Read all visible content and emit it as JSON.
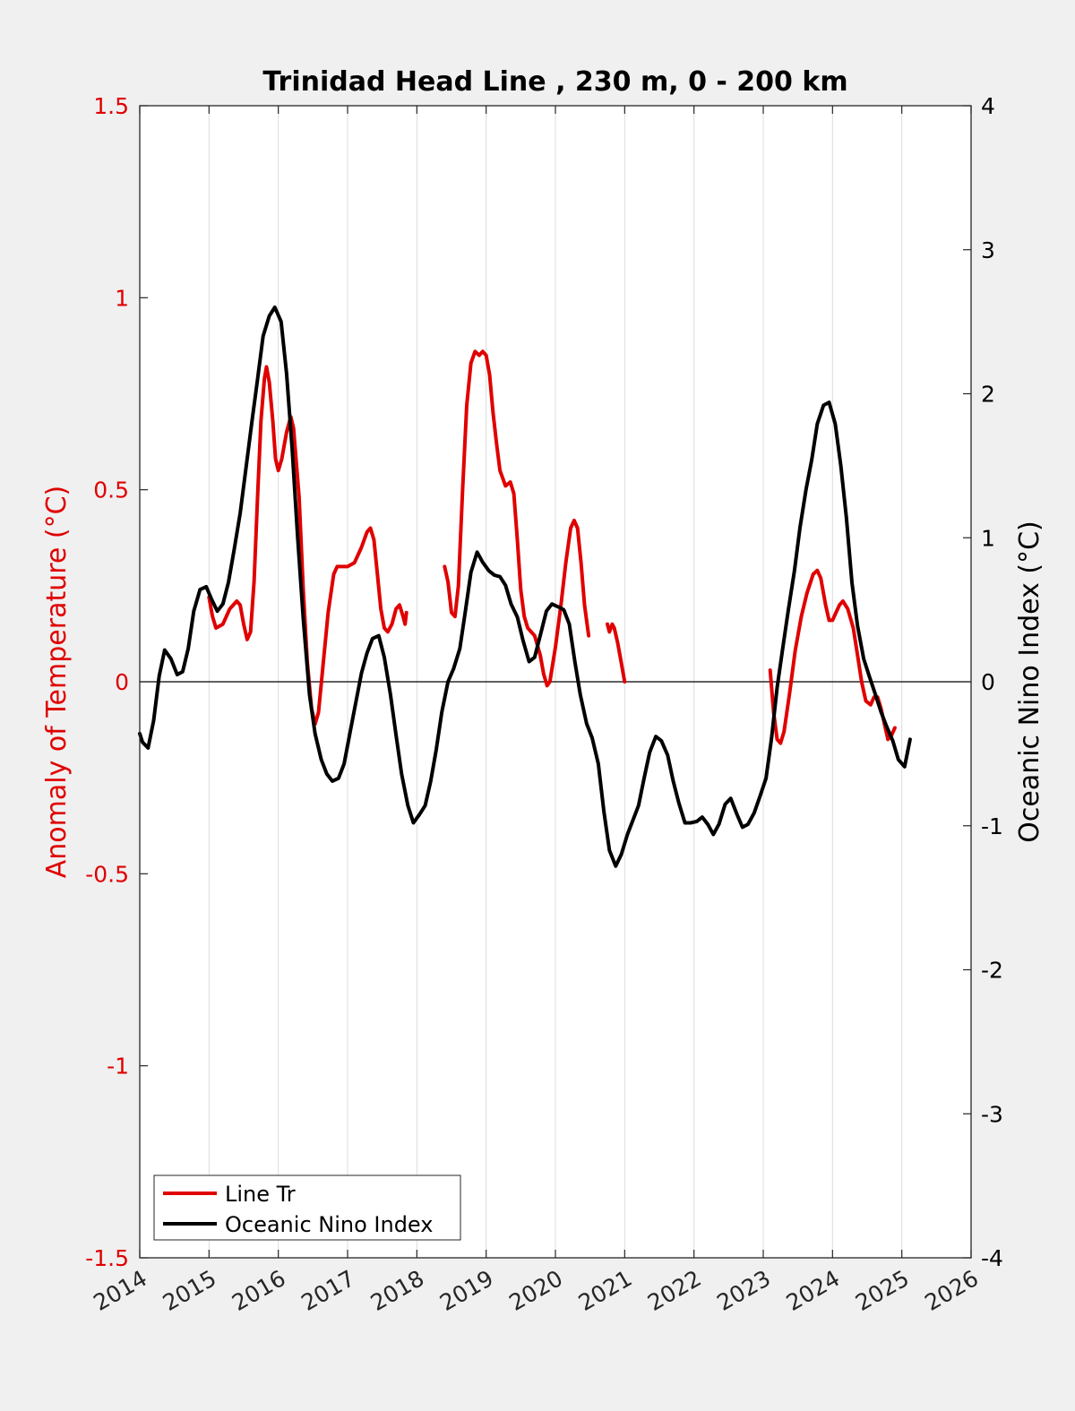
{
  "chart_data": {
    "type": "line",
    "title": "Trinidad Head Line , 230 m, 0 - 200 km",
    "xlim": [
      2014,
      2026
    ],
    "x_ticks": [
      "2014",
      "2015",
      "2016",
      "2017",
      "2018",
      "2019",
      "2020",
      "2021",
      "2022",
      "2023",
      "2024",
      "2025",
      "2026"
    ],
    "grid": "vertical",
    "left_axis": {
      "label": "Anomaly of Temperature (°C)",
      "ylim": [
        -1.5,
        1.5
      ],
      "ticks": [
        "-1.5",
        "-1",
        "-0.5",
        "0",
        "0.5",
        "1",
        "1.5"
      ],
      "color": "#e00000"
    },
    "right_axis": {
      "label": "Oceanic Nino Index (°C)",
      "ylim": [
        -4,
        4
      ],
      "ticks": [
        "-4",
        "-3",
        "-2",
        "-1",
        "0",
        "1",
        "2",
        "3",
        "4"
      ],
      "color": "#000000"
    },
    "legend": {
      "placement": "bottom-left"
    },
    "series": [
      {
        "name": "Line Tr",
        "axis": "left",
        "color": "#e00000",
        "segments": [
          [
            [
              2015.0,
              0.22
            ],
            [
              2015.05,
              0.17
            ],
            [
              2015.1,
              0.14
            ],
            [
              2015.2,
              0.15
            ],
            [
              2015.3,
              0.19
            ],
            [
              2015.4,
              0.21
            ],
            [
              2015.45,
              0.2
            ],
            [
              2015.5,
              0.15
            ],
            [
              2015.55,
              0.11
            ],
            [
              2015.6,
              0.13
            ],
            [
              2015.65,
              0.26
            ],
            [
              2015.7,
              0.48
            ],
            [
              2015.75,
              0.68
            ],
            [
              2015.8,
              0.79
            ],
            [
              2015.83,
              0.82
            ],
            [
              2015.87,
              0.78
            ],
            [
              2015.92,
              0.68
            ],
            [
              2015.96,
              0.58
            ],
            [
              2016.0,
              0.55
            ],
            [
              2016.05,
              0.58
            ],
            [
              2016.12,
              0.65
            ],
            [
              2016.18,
              0.69
            ],
            [
              2016.22,
              0.66
            ],
            [
              2016.3,
              0.48
            ],
            [
              2016.36,
              0.24
            ],
            [
              2016.42,
              0.05
            ],
            [
              2016.48,
              -0.07
            ],
            [
              2016.53,
              -0.11
            ],
            [
              2016.58,
              -0.08
            ],
            [
              2016.65,
              0.05
            ],
            [
              2016.72,
              0.18
            ],
            [
              2016.8,
              0.28
            ],
            [
              2016.85,
              0.3
            ],
            [
              2017.0,
              0.3
            ],
            [
              2017.1,
              0.31
            ],
            [
              2017.2,
              0.35
            ],
            [
              2017.28,
              0.39
            ],
            [
              2017.33,
              0.4
            ],
            [
              2017.38,
              0.37
            ],
            [
              2017.43,
              0.28
            ],
            [
              2017.48,
              0.19
            ],
            [
              2017.53,
              0.14
            ],
            [
              2017.58,
              0.13
            ],
            [
              2017.64,
              0.15
            ],
            [
              2017.7,
              0.19
            ],
            [
              2017.75,
              0.2
            ],
            [
              2017.8,
              0.17
            ],
            [
              2017.83,
              0.15
            ],
            [
              2017.85,
              0.18
            ]
          ],
          [
            [
              2018.4,
              0.3
            ],
            [
              2018.45,
              0.26
            ],
            [
              2018.5,
              0.18
            ],
            [
              2018.55,
              0.17
            ],
            [
              2018.6,
              0.25
            ],
            [
              2018.66,
              0.5
            ],
            [
              2018.72,
              0.72
            ],
            [
              2018.78,
              0.83
            ],
            [
              2018.84,
              0.86
            ],
            [
              2018.9,
              0.85
            ],
            [
              2018.95,
              0.86
            ],
            [
              2019.0,
              0.85
            ],
            [
              2019.05,
              0.8
            ],
            [
              2019.1,
              0.7
            ],
            [
              2019.15,
              0.62
            ],
            [
              2019.2,
              0.55
            ],
            [
              2019.28,
              0.51
            ],
            [
              2019.35,
              0.52
            ],
            [
              2019.4,
              0.49
            ],
            [
              2019.45,
              0.37
            ],
            [
              2019.5,
              0.24
            ],
            [
              2019.55,
              0.17
            ],
            [
              2019.6,
              0.14
            ],
            [
              2019.7,
              0.12
            ],
            [
              2019.78,
              0.07
            ],
            [
              2019.83,
              0.02
            ],
            [
              2019.88,
              -0.01
            ],
            [
              2019.92,
              0.0
            ],
            [
              2020.0,
              0.09
            ],
            [
              2020.08,
              0.2
            ],
            [
              2020.15,
              0.31
            ],
            [
              2020.22,
              0.4
            ],
            [
              2020.27,
              0.42
            ],
            [
              2020.32,
              0.4
            ],
            [
              2020.37,
              0.31
            ],
            [
              2020.42,
              0.2
            ],
            [
              2020.48,
              0.12
            ]
          ],
          [
            [
              2020.75,
              0.15
            ],
            [
              2020.78,
              0.13
            ],
            [
              2020.82,
              0.15
            ],
            [
              2020.85,
              0.14
            ],
            [
              2020.9,
              0.1
            ],
            [
              2020.95,
              0.05
            ],
            [
              2021.0,
              0.0
            ]
          ],
          [
            [
              2023.1,
              0.03
            ],
            [
              2023.15,
              -0.08
            ],
            [
              2023.2,
              -0.15
            ],
            [
              2023.25,
              -0.16
            ],
            [
              2023.3,
              -0.13
            ],
            [
              2023.38,
              -0.03
            ],
            [
              2023.46,
              0.08
            ],
            [
              2023.55,
              0.17
            ],
            [
              2023.63,
              0.23
            ],
            [
              2023.72,
              0.28
            ],
            [
              2023.78,
              0.29
            ],
            [
              2023.83,
              0.27
            ],
            [
              2023.9,
              0.2
            ],
            [
              2023.95,
              0.16
            ],
            [
              2024.0,
              0.16
            ],
            [
              2024.05,
              0.18
            ],
            [
              2024.1,
              0.2
            ],
            [
              2024.15,
              0.21
            ],
            [
              2024.22,
              0.19
            ],
            [
              2024.3,
              0.14
            ],
            [
              2024.36,
              0.07
            ],
            [
              2024.42,
              0.0
            ],
            [
              2024.48,
              -0.05
            ],
            [
              2024.55,
              -0.06
            ],
            [
              2024.6,
              -0.04
            ],
            [
              2024.65,
              -0.04
            ],
            [
              2024.7,
              -0.07
            ],
            [
              2024.75,
              -0.11
            ],
            [
              2024.8,
              -0.15
            ],
            [
              2024.85,
              -0.14
            ],
            [
              2024.9,
              -0.12
            ]
          ]
        ]
      },
      {
        "name": "Oceanic Nino Index",
        "axis": "right",
        "color": "#000000",
        "segments": [
          [
            [
              2014.0,
              -0.36
            ],
            [
              2014.04,
              -0.42
            ],
            [
              2014.12,
              -0.46
            ],
            [
              2014.2,
              -0.27
            ],
            [
              2014.28,
              0.04
            ],
            [
              2014.36,
              0.22
            ],
            [
              2014.45,
              0.16
            ],
            [
              2014.54,
              0.05
            ],
            [
              2014.62,
              0.07
            ],
            [
              2014.7,
              0.23
            ],
            [
              2014.78,
              0.49
            ],
            [
              2014.87,
              0.64
            ],
            [
              2014.96,
              0.66
            ],
            [
              2015.04,
              0.57
            ],
            [
              2015.12,
              0.49
            ],
            [
              2015.2,
              0.54
            ],
            [
              2015.28,
              0.69
            ],
            [
              2015.36,
              0.91
            ],
            [
              2015.45,
              1.17
            ],
            [
              2015.53,
              1.47
            ],
            [
              2015.62,
              1.81
            ],
            [
              2015.7,
              2.1
            ],
            [
              2015.78,
              2.4
            ],
            [
              2015.87,
              2.54
            ],
            [
              2015.95,
              2.6
            ],
            [
              2016.04,
              2.5
            ],
            [
              2016.12,
              2.14
            ],
            [
              2016.2,
              1.62
            ],
            [
              2016.28,
              1.0
            ],
            [
              2016.36,
              0.44
            ],
            [
              2016.45,
              -0.09
            ],
            [
              2016.53,
              -0.36
            ],
            [
              2016.62,
              -0.54
            ],
            [
              2016.7,
              -0.64
            ],
            [
              2016.78,
              -0.69
            ],
            [
              2016.87,
              -0.67
            ],
            [
              2016.95,
              -0.57
            ],
            [
              2017.04,
              -0.34
            ],
            [
              2017.12,
              -0.14
            ],
            [
              2017.2,
              0.06
            ],
            [
              2017.28,
              0.2
            ],
            [
              2017.36,
              0.3
            ],
            [
              2017.45,
              0.32
            ],
            [
              2017.53,
              0.17
            ],
            [
              2017.62,
              -0.09
            ],
            [
              2017.7,
              -0.37
            ],
            [
              2017.78,
              -0.64
            ],
            [
              2017.87,
              -0.86
            ],
            [
              2017.95,
              -0.98
            ],
            [
              2018.04,
              -0.92
            ],
            [
              2018.12,
              -0.86
            ],
            [
              2018.2,
              -0.69
            ],
            [
              2018.28,
              -0.47
            ],
            [
              2018.36,
              -0.21
            ],
            [
              2018.45,
              0.0
            ],
            [
              2018.53,
              0.09
            ],
            [
              2018.62,
              0.23
            ],
            [
              2018.7,
              0.49
            ],
            [
              2018.78,
              0.76
            ],
            [
              2018.87,
              0.9
            ],
            [
              2018.95,
              0.83
            ],
            [
              2019.04,
              0.77
            ],
            [
              2019.12,
              0.74
            ],
            [
              2019.2,
              0.73
            ],
            [
              2019.28,
              0.67
            ],
            [
              2019.36,
              0.54
            ],
            [
              2019.45,
              0.45
            ],
            [
              2019.53,
              0.29
            ],
            [
              2019.62,
              0.14
            ],
            [
              2019.7,
              0.17
            ],
            [
              2019.78,
              0.32
            ],
            [
              2019.87,
              0.49
            ],
            [
              2019.95,
              0.54
            ],
            [
              2020.04,
              0.52
            ],
            [
              2020.12,
              0.5
            ],
            [
              2020.2,
              0.4
            ],
            [
              2020.28,
              0.14
            ],
            [
              2020.36,
              -0.09
            ],
            [
              2020.45,
              -0.29
            ],
            [
              2020.53,
              -0.39
            ],
            [
              2020.62,
              -0.57
            ],
            [
              2020.7,
              -0.9
            ],
            [
              2020.78,
              -1.17
            ],
            [
              2020.87,
              -1.28
            ],
            [
              2020.95,
              -1.2
            ],
            [
              2021.04,
              -1.06
            ],
            [
              2021.12,
              -0.96
            ],
            [
              2021.2,
              -0.86
            ],
            [
              2021.28,
              -0.67
            ],
            [
              2021.36,
              -0.49
            ],
            [
              2021.45,
              -0.38
            ],
            [
              2021.53,
              -0.41
            ],
            [
              2021.62,
              -0.51
            ],
            [
              2021.7,
              -0.69
            ],
            [
              2021.78,
              -0.84
            ],
            [
              2021.87,
              -0.98
            ],
            [
              2021.95,
              -0.98
            ],
            [
              2022.04,
              -0.97
            ],
            [
              2022.12,
              -0.94
            ],
            [
              2022.2,
              -0.99
            ],
            [
              2022.28,
              -1.06
            ],
            [
              2022.36,
              -0.99
            ],
            [
              2022.45,
              -0.85
            ],
            [
              2022.53,
              -0.81
            ],
            [
              2022.62,
              -0.92
            ],
            [
              2022.7,
              -1.01
            ],
            [
              2022.78,
              -0.99
            ],
            [
              2022.87,
              -0.91
            ],
            [
              2022.95,
              -0.8
            ],
            [
              2023.04,
              -0.67
            ],
            [
              2023.12,
              -0.39
            ],
            [
              2023.2,
              -0.04
            ],
            [
              2023.28,
              0.23
            ],
            [
              2023.36,
              0.49
            ],
            [
              2023.45,
              0.77
            ],
            [
              2023.53,
              1.07
            ],
            [
              2023.62,
              1.34
            ],
            [
              2023.7,
              1.54
            ],
            [
              2023.78,
              1.79
            ],
            [
              2023.87,
              1.92
            ],
            [
              2023.95,
              1.94
            ],
            [
              2024.04,
              1.79
            ],
            [
              2024.12,
              1.5
            ],
            [
              2024.2,
              1.14
            ],
            [
              2024.28,
              0.69
            ],
            [
              2024.36,
              0.39
            ],
            [
              2024.45,
              0.16
            ],
            [
              2024.53,
              0.04
            ],
            [
              2024.62,
              -0.09
            ],
            [
              2024.7,
              -0.21
            ],
            [
              2024.78,
              -0.31
            ],
            [
              2024.87,
              -0.41
            ],
            [
              2024.95,
              -0.54
            ],
            [
              2025.04,
              -0.59
            ],
            [
              2025.12,
              -0.4
            ]
          ]
        ]
      }
    ]
  }
}
